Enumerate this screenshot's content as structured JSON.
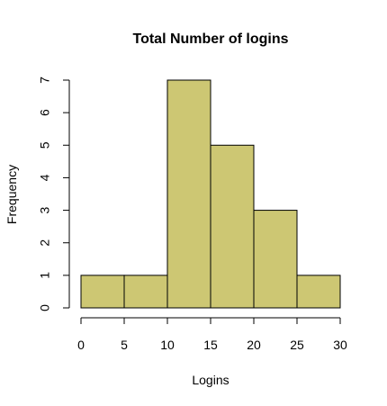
{
  "chart_data": {
    "type": "bar",
    "title": "Total Number of logins",
    "xlabel": "Logins",
    "ylabel": "Frequency",
    "bins": [
      {
        "start": 0,
        "end": 5,
        "count": 1
      },
      {
        "start": 5,
        "end": 10,
        "count": 1
      },
      {
        "start": 10,
        "end": 15,
        "count": 7
      },
      {
        "start": 15,
        "end": 20,
        "count": 5
      },
      {
        "start": 20,
        "end": 25,
        "count": 3
      },
      {
        "start": 25,
        "end": 30,
        "count": 1
      }
    ],
    "xlim": [
      0,
      30
    ],
    "ylim": [
      0,
      7
    ],
    "xticks": [
      "0",
      "5",
      "10",
      "15",
      "20",
      "25",
      "30"
    ],
    "yticks": [
      "0",
      "1",
      "2",
      "3",
      "4",
      "5",
      "6",
      "7"
    ],
    "bar_color": "#CDC773",
    "grid": false
  }
}
